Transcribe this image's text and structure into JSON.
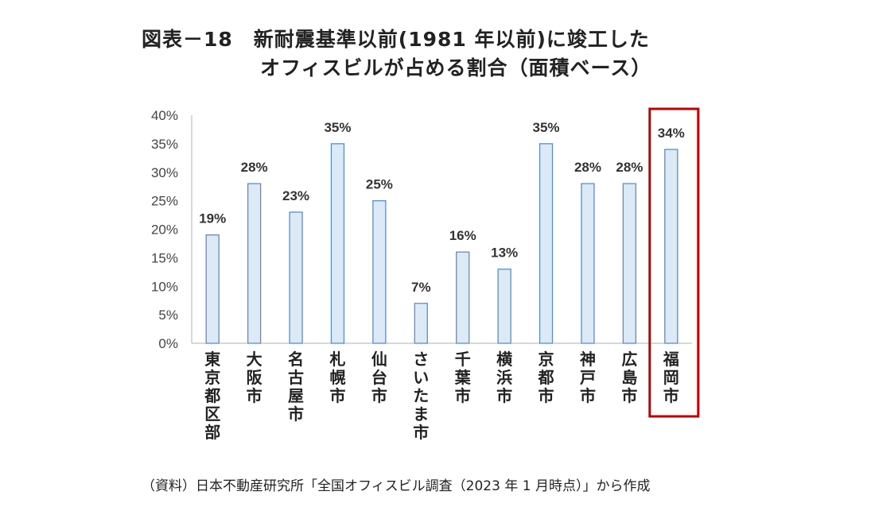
{
  "title": {
    "line1": "図表－18　新耐震基準以前(1981 年以前)に竣工した",
    "line2": "オフィスビルが占める割合（面積ベース）"
  },
  "source": "（資料）日本不動産研究所「全国オフィスビル調査（2023 年 1  月時点）」から作成",
  "colors": {
    "bar_fill": "#dce9f7",
    "bar_stroke": "#5b8ec7",
    "axis": "#b0b0b0",
    "highlight_box": "#c00000"
  },
  "chart_data": {
    "type": "bar",
    "title": "",
    "xlabel": "",
    "ylabel": "",
    "ylim": [
      0,
      40
    ],
    "yticks": [
      "0%",
      "5%",
      "10%",
      "15%",
      "20%",
      "25%",
      "30%",
      "35%",
      "40%"
    ],
    "categories": [
      "東京都区部",
      "大阪市",
      "名古屋市",
      "札幌市",
      "仙台市",
      "さいたま市",
      "千葉市",
      "横浜市",
      "京都市",
      "神戸市",
      "広島市",
      "福岡市"
    ],
    "values": [
      19,
      28,
      23,
      35,
      25,
      7,
      16,
      13,
      35,
      28,
      28,
      34
    ],
    "data_labels": [
      "19%",
      "28%",
      "23%",
      "35%",
      "25%",
      "7%",
      "16%",
      "13%",
      "35%",
      "28%",
      "28%",
      "34%"
    ],
    "highlighted_category": "福岡市",
    "grid": false,
    "legend": "none"
  }
}
